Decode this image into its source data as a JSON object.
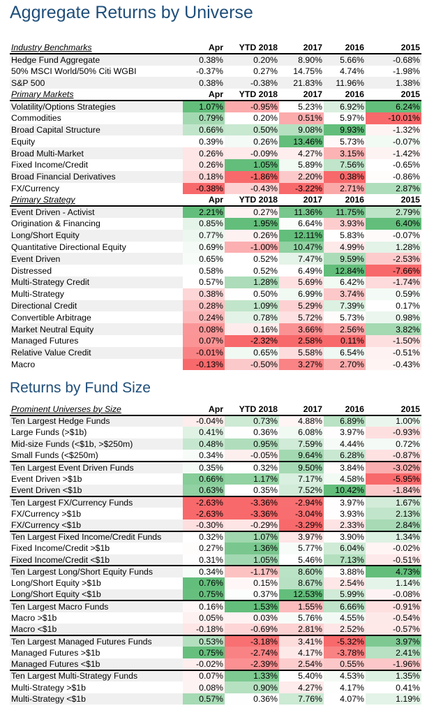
{
  "title": "Aggregate Returns by Universe",
  "table1": {
    "sections": [
      {
        "header": "Industry Benchmarks",
        "columns": [
          "Apr",
          "YTD 2018",
          "2017",
          "2016",
          "2015"
        ],
        "rows": [
          [
            "Hedge Fund Aggregate",
            "0.38%",
            "0.20%",
            "8.90%",
            "5.66%",
            "-0.68%"
          ],
          [
            "50% MSCI World/50% Citi WGBI",
            "-0.37%",
            "0.27%",
            "14.75%",
            "4.74%",
            "-1.98%"
          ],
          [
            "S&P 500",
            "0.38%",
            "-0.38%",
            "21.83%",
            "11.96%",
            "1.38%"
          ]
        ]
      },
      {
        "header": "Primary Markets",
        "columns": [
          "Apr",
          "YTD 2018",
          "2017",
          "2016",
          "2015"
        ],
        "rows": [
          [
            "Volatility/Options Strategies",
            "1.07%",
            "-0.95%",
            "5.23%",
            "6.92%",
            "6.24%"
          ],
          [
            "Commodities",
            "0.79%",
            "0.20%",
            "0.51%",
            "5.97%",
            "-10.01%"
          ],
          [
            "Broad Capital Structure",
            "0.66%",
            "0.50%",
            "9.08%",
            "9.93%",
            "-1.32%"
          ],
          [
            "Equity",
            "0.39%",
            "0.26%",
            "13.46%",
            "5.73%",
            "-0.07%"
          ],
          [
            "Broad Multi-Market",
            "0.26%",
            "-0.09%",
            "4.27%",
            "3.15%",
            "-1.42%"
          ],
          [
            "Fixed Income/Credit",
            "0.26%",
            "1.05%",
            "5.89%",
            "7.56%",
            "-0.65%"
          ],
          [
            "Broad Financial Derivatives",
            "0.18%",
            "-1.86%",
            "2.20%",
            "0.38%",
            "-0.86%"
          ],
          [
            "FX/Currency",
            "-0.38%",
            "-0.43%",
            "-3.22%",
            "2.71%",
            "2.87%"
          ]
        ]
      },
      {
        "header": "Primary Strategy",
        "columns": [
          "Apr",
          "YTD 2018",
          "2017",
          "2016",
          "2015"
        ],
        "rows": [
          [
            "Event Driven - Activist",
            "2.21%",
            "0.27%",
            "11.36%",
            "11.75%",
            "2.79%"
          ],
          [
            "Origination & Financing",
            "0.85%",
            "1.95%",
            "6.64%",
            "3.93%",
            "6.40%"
          ],
          [
            "Long/Short Equity",
            "0.77%",
            "0.26%",
            "12.11%",
            "5.83%",
            "-0.07%"
          ],
          [
            "Quantitative Directional Equity",
            "0.69%",
            "-1.00%",
            "10.47%",
            "4.99%",
            "1.28%"
          ],
          [
            "Event Driven",
            "0.65%",
            "0.52%",
            "7.47%",
            "9.59%",
            "-2.53%"
          ],
          [
            "Distressed",
            "0.58%",
            "0.52%",
            "6.49%",
            "12.84%",
            "-7.66%"
          ],
          [
            "Multi-Strategy Credit",
            "0.57%",
            "1.28%",
            "5.69%",
            "6.42%",
            "-1.74%"
          ],
          [
            "Multi-Strategy",
            "0.38%",
            "0.50%",
            "6.99%",
            "3.74%",
            "0.59%"
          ],
          [
            "Directional Credit",
            "0.28%",
            "1.09%",
            "5.29%",
            "7.39%",
            "0.17%"
          ],
          [
            "Convertible Arbitrage",
            "0.24%",
            "0.78%",
            "5.72%",
            "5.73%",
            "0.98%"
          ],
          [
            "Market Neutral Equity",
            "0.08%",
            "0.16%",
            "3.66%",
            "2.56%",
            "3.82%"
          ],
          [
            "Managed Futures",
            "0.07%",
            "-2.32%",
            "2.58%",
            "0.11%",
            "-1.50%"
          ],
          [
            "Relative Value Credit",
            "-0.01%",
            "0.65%",
            "5.58%",
            "6.54%",
            "-0.51%"
          ],
          [
            "Macro",
            "-0.13%",
            "-0.50%",
            "3.27%",
            "2.70%",
            "-0.43%"
          ]
        ]
      }
    ]
  },
  "title2": "Returns by Fund Size",
  "table2": {
    "header": "Prominent Universes by Size",
    "columns": [
      "Apr",
      "YTD 2018",
      "2017",
      "2016",
      "2015"
    ],
    "groups": [
      [
        [
          "Ten Largest Hedge Funds",
          "-0.04%",
          "0.73%",
          "4.88%",
          "6.89%",
          "1.00%"
        ],
        [
          "Large Funds (>$1b)",
          "0.41%",
          "0.36%",
          "6.08%",
          "3.97%",
          "-0.93%"
        ],
        [
          "Mid-size Funds (<$1b, >$250m)",
          "0.48%",
          "0.95%",
          "7.59%",
          "4.44%",
          "0.72%"
        ],
        [
          "Small Funds (<$250m)",
          "0.34%",
          "-0.05%",
          "9.64%",
          "6.28%",
          "-0.87%"
        ]
      ],
      [
        [
          "Ten Largest Event Driven Funds",
          "0.35%",
          "0.32%",
          "9.50%",
          "3.84%",
          "-3.02%"
        ],
        [
          "Event Driven >$1b",
          "0.66%",
          "1.17%",
          "7.17%",
          "4.58%",
          "-5.95%"
        ],
        [
          "Event Driven <$1b",
          "0.63%",
          "0.35%",
          "7.52%",
          "10.42%",
          "-1.84%"
        ]
      ],
      [
        [
          "Ten Largest FX/Currency Funds",
          "-2.63%",
          "-3.36%",
          "-2.94%",
          "3.97%",
          "1.67%"
        ],
        [
          "FX/Currency >$1b",
          "-2.63%",
          "-3.36%",
          "-3.04%",
          "3.93%",
          "2.13%"
        ],
        [
          "FX/Currency <$1b",
          "-0.30%",
          "-0.29%",
          "-3.29%",
          "2.33%",
          "2.84%"
        ]
      ],
      [
        [
          "Ten Largest Fixed Income/Credit Funds",
          "0.32%",
          "1.07%",
          "3.97%",
          "3.90%",
          "1.34%"
        ],
        [
          "Fixed Income/Credit >$1b",
          "0.27%",
          "1.36%",
          "5.77%",
          "6.04%",
          "-0.02%"
        ],
        [
          "Fixed Income/Credit <$1b",
          "0.31%",
          "1.05%",
          "5.46%",
          "7.13%",
          "-0.51%"
        ]
      ],
      [
        [
          "Ten Largest Long/Short Equity Funds",
          "0.34%",
          "-1.17%",
          "8.60%",
          "3.88%",
          "4.73%"
        ],
        [
          "Long/Short Equity >$1b",
          "0.76%",
          "0.15%",
          "8.67%",
          "2.54%",
          "1.14%"
        ],
        [
          "Long/Short Equity <$1b",
          "0.75%",
          "0.37%",
          "12.53%",
          "5.99%",
          "-0.08%"
        ]
      ],
      [
        [
          "Ten Largest Macro Funds",
          "0.16%",
          "1.53%",
          "1.55%",
          "6.66%",
          "-0.91%"
        ],
        [
          "Macro >$1b",
          "0.05%",
          "0.03%",
          "5.76%",
          "4.55%",
          "-0.54%"
        ],
        [
          "Macro <$1b",
          "-0.18%",
          "-0.69%",
          "2.81%",
          "2.52%",
          "-0.57%"
        ]
      ],
      [
        [
          "Ten Largest Managed Futures Funds",
          "0.53%",
          "-3.18%",
          "3.41%",
          "-5.32%",
          "3.97%"
        ],
        [
          "Managed Futures >$1b",
          "0.75%",
          "-2.74%",
          "4.17%",
          "-3.78%",
          "2.41%"
        ],
        [
          "Managed Futures <$1b",
          "-0.02%",
          "-2.39%",
          "2.54%",
          "0.55%",
          "-1.96%"
        ]
      ],
      [
        [
          "Ten Largest Multi-Strategy Funds",
          "0.07%",
          "1.33%",
          "5.40%",
          "4.53%",
          "1.35%"
        ],
        [
          "Multi-Strategy >$1b",
          "0.08%",
          "0.90%",
          "4.27%",
          "4.17%",
          "0.41%"
        ],
        [
          "Multi-Strategy <$1b",
          "0.57%",
          "0.36%",
          "7.76%",
          "4.07%",
          "1.19%"
        ]
      ]
    ]
  }
}
